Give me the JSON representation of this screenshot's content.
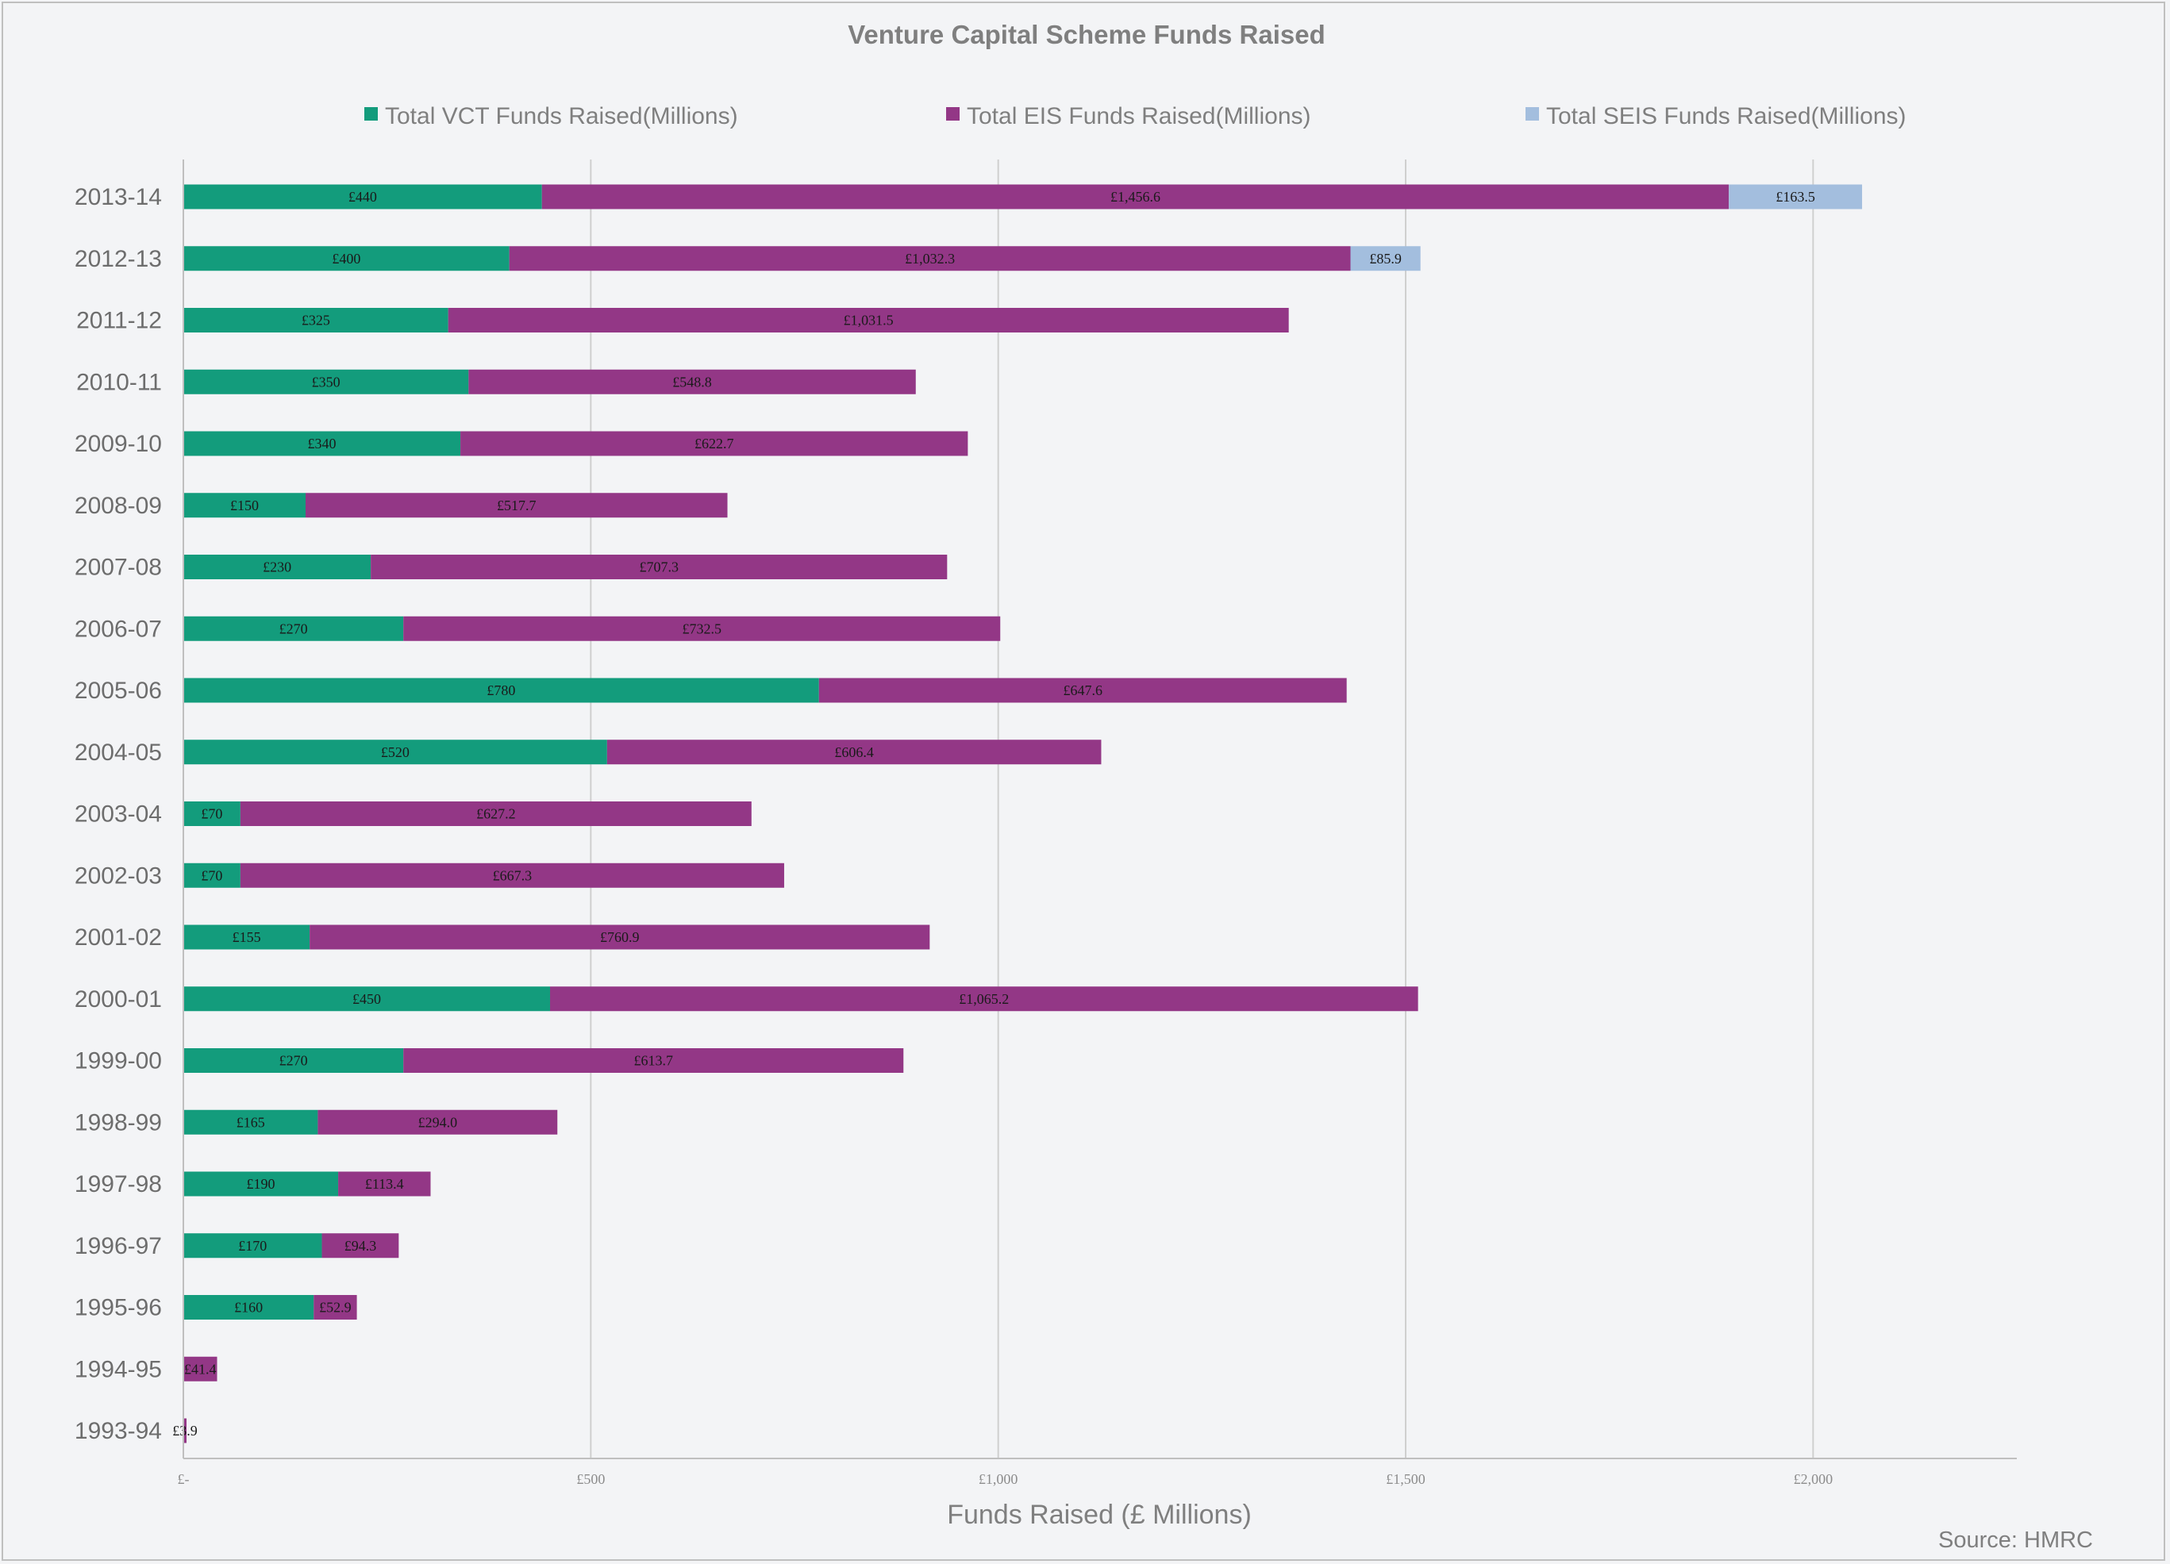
{
  "chart_data": {
    "type": "bar",
    "orientation": "horizontal",
    "stacked": true,
    "title": "Venture Capital Scheme Funds Raised",
    "xlabel": "Funds Raised (£ Millions)",
    "ylabel": "",
    "source": "Source: HMRC",
    "xlim": [
      0,
      2250
    ],
    "x_ticks": [
      {
        "value": 0,
        "label": "£-"
      },
      {
        "value": 500,
        "label": "£500"
      },
      {
        "value": 1000,
        "label": "£1,000"
      },
      {
        "value": 1500,
        "label": "£1,500"
      },
      {
        "value": 2000,
        "label": "£2,000"
      }
    ],
    "grid": true,
    "legend_position": "top",
    "categories": [
      "2013-14",
      "2012-13",
      "2011-12",
      "2010-11",
      "2009-10",
      "2008-09",
      "2007-08",
      "2006-07",
      "2005-06",
      "2004-05",
      "2003-04",
      "2002-03",
      "2001-02",
      "2000-01",
      "1999-00",
      "1998-99",
      "1997-98",
      "1996-97",
      "1995-96",
      "1994-95",
      "1993-94"
    ],
    "series": [
      {
        "name": "Total VCT Funds Raised(Millions)",
        "color": "#139c7c",
        "values": [
          440,
          400,
          325,
          350,
          340,
          150,
          230,
          270,
          780,
          520,
          70,
          70,
          155,
          450,
          270,
          165,
          190,
          170,
          160,
          0,
          0
        ],
        "labels": [
          "£440",
          "£400",
          "£325",
          "£350",
          "£340",
          "£150",
          "£230",
          "£270",
          "£780",
          "£520",
          "£70",
          "£70",
          "£155",
          "£450",
          "£270",
          "£165",
          "£190",
          "£170",
          "£160",
          "",
          ""
        ]
      },
      {
        "name": "Total EIS Funds Raised(Millions)",
        "color": "#933786",
        "values": [
          1456.6,
          1032.3,
          1031.5,
          548.8,
          622.7,
          517.7,
          707.3,
          732.5,
          647.6,
          606.4,
          627.2,
          667.3,
          760.9,
          1065.2,
          613.7,
          294.0,
          113.4,
          94.3,
          52.9,
          41.4,
          3.9
        ],
        "labels": [
          "£1,456.6",
          "£1,032.3",
          "£1,031.5",
          "£548.8",
          "£622.7",
          "£517.7",
          "£707.3",
          "£732.5",
          "£647.6",
          "£606.4",
          "£627.2",
          "£667.3",
          "£760.9",
          "£1,065.2",
          "£613.7",
          "£294.0",
          "£113.4",
          "£94.3",
          "£52.9",
          "£41.4",
          "£3.9"
        ]
      },
      {
        "name": "Total SEIS Funds Raised(Millions)",
        "color": "#a3bede",
        "values": [
          163.5,
          85.9,
          0,
          0,
          0,
          0,
          0,
          0,
          0,
          0,
          0,
          0,
          0,
          0,
          0,
          0,
          0,
          0,
          0,
          0,
          0
        ],
        "labels": [
          "£163.5",
          "£85.9",
          "",
          "",
          "",
          "",
          "",
          "",
          "",
          "",
          "",
          "",
          "",
          "",
          "",
          "",
          "",
          "",
          "",
          "",
          ""
        ]
      }
    ]
  }
}
